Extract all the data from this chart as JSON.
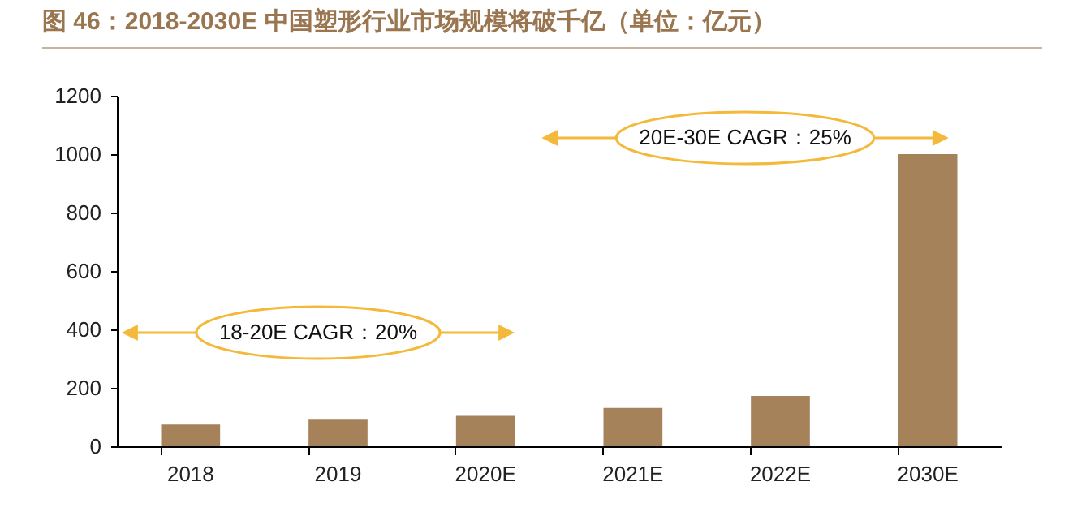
{
  "chart_data": {
    "type": "bar",
    "title": "图 46：2018-2030E 中国塑形行业市场规模将破千亿（单位：亿元）",
    "categories": [
      "2018",
      "2019",
      "2020E",
      "2021E",
      "2022E",
      "2030E"
    ],
    "values": [
      74,
      91,
      104,
      131,
      172,
      1000
    ],
    "color": "#a5825a",
    "ylim": [
      0,
      1200
    ],
    "yticks": [
      0,
      200,
      400,
      600,
      800,
      1000,
      1200
    ],
    "grid": false,
    "annotations": [
      "18-20E CAGR：20%",
      "20E-30E CAGR：25%"
    ]
  }
}
